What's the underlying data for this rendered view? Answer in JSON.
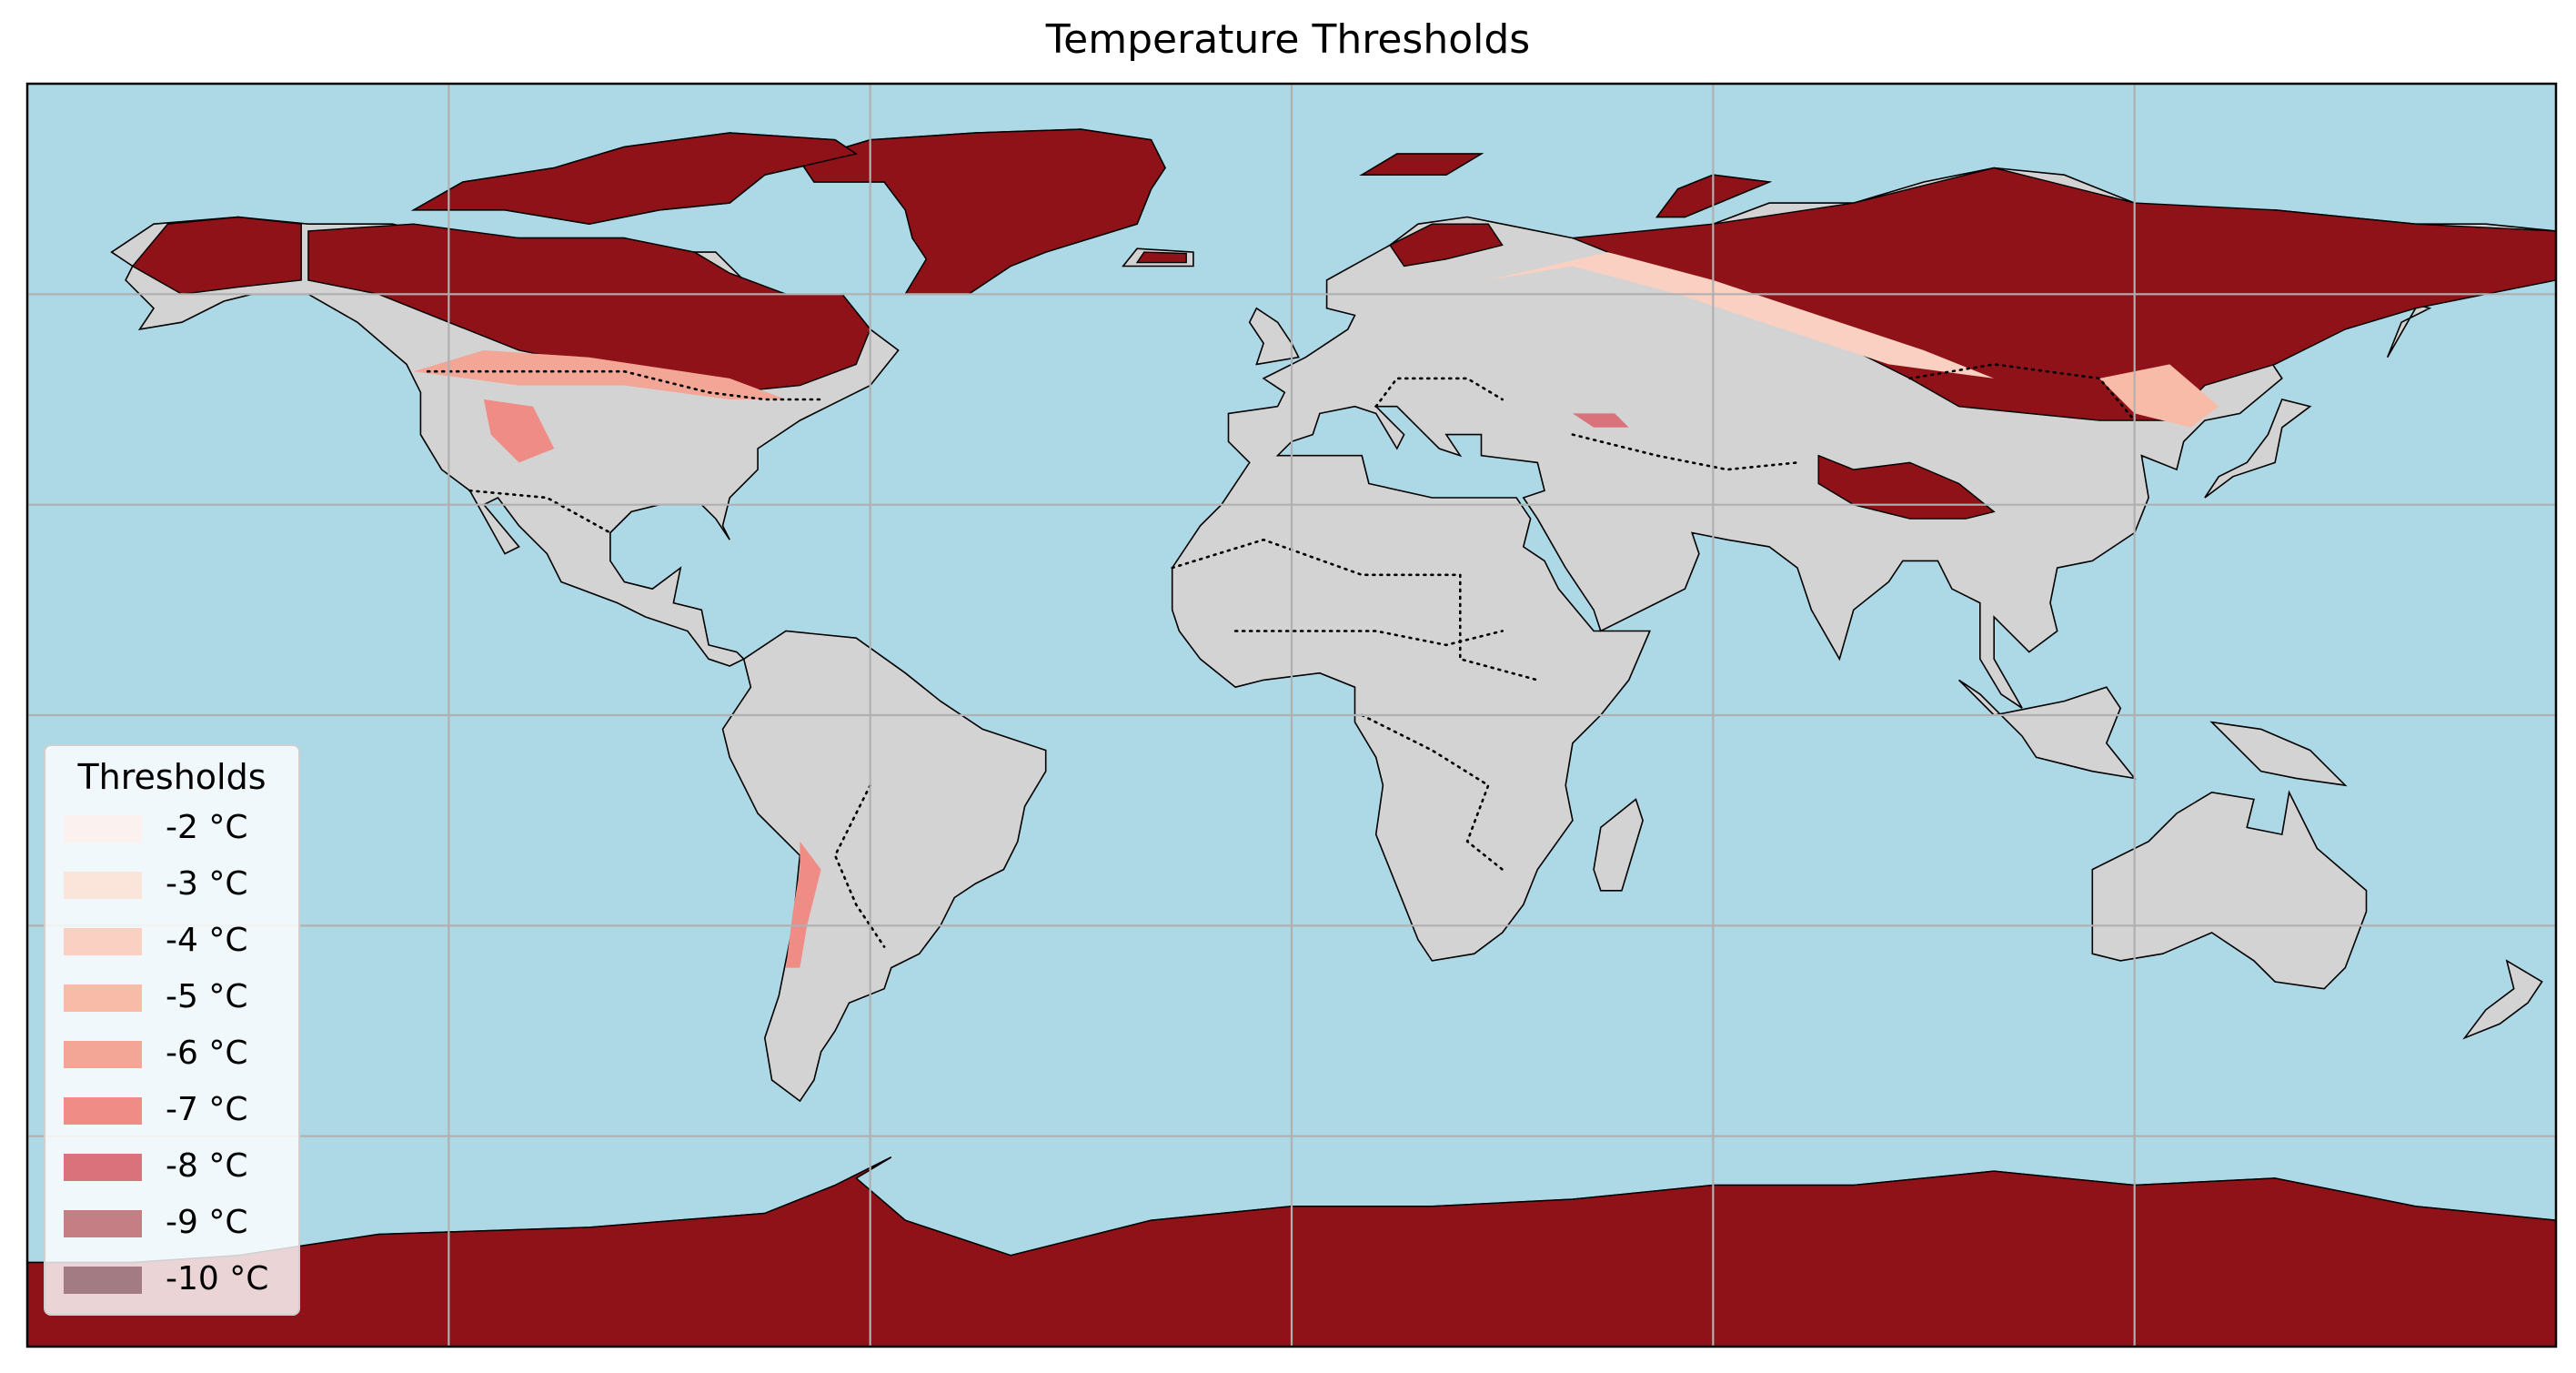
{
  "title": "Temperature Thresholds",
  "colors": {
    "ocean": "#add8e6",
    "land": "#d3d3d3",
    "cold": "#8e1218",
    "grid": "#b0b0b0",
    "frame": "#000000"
  },
  "legend": {
    "title": "Thresholds",
    "placement": "lower-left",
    "items": [
      {
        "label": "-2 °C",
        "color": "#fbf2ef"
      },
      {
        "label": "-3 °C",
        "color": "#fbe4da"
      },
      {
        "label": "-4 °C",
        "color": "#f9d0c1"
      },
      {
        "label": "-5 °C",
        "color": "#f7bba7"
      },
      {
        "label": "-6 °C",
        "color": "#f3a596"
      },
      {
        "label": "-7 °C",
        "color": "#ee8c85"
      },
      {
        "label": "-8 °C",
        "color": "#d9727a"
      },
      {
        "label": "-9 °C",
        "color": "#c57f84"
      },
      {
        "label": "-10 °C",
        "color": "#a37b82"
      }
    ]
  },
  "map": {
    "projection": "PlateCarree",
    "lon_range": [
      -180,
      180
    ],
    "lat_range": [
      -90,
      90
    ],
    "gridlines": true,
    "grid_lons": [
      -120,
      -60,
      0,
      60,
      120
    ],
    "grid_lats": [
      -60,
      -30,
      0,
      30,
      60
    ],
    "regions_below_threshold": [
      "Greenland",
      "northern Canada",
      "Alaska",
      "Siberia",
      "Mongolia",
      "Tibetan Plateau",
      "Antarctica",
      "Scandinavia",
      "Caucasus",
      "Andes",
      "Rocky Mountains"
    ]
  }
}
